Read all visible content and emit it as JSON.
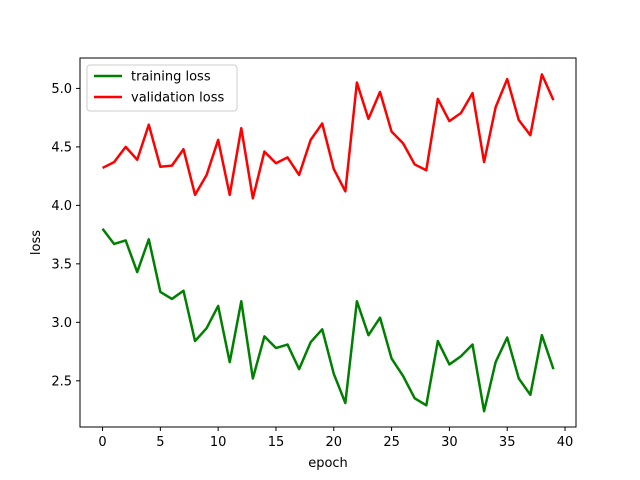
{
  "chart_data": {
    "type": "line",
    "xlabel": "epoch",
    "ylabel": "loss",
    "xlim": [
      -1.95,
      40.95
    ],
    "ylim": [
      2.105,
      5.26
    ],
    "xticks": [
      0,
      5,
      10,
      15,
      20,
      25,
      30,
      35,
      40
    ],
    "yticks": [
      2.5,
      3.0,
      3.5,
      4.0,
      4.5,
      5.0
    ],
    "xtick_labels": [
      "0",
      "5",
      "10",
      "15",
      "20",
      "25",
      "30",
      "35",
      "40"
    ],
    "ytick_labels": [
      "2.5",
      "3.0",
      "3.5",
      "4.0",
      "4.5",
      "5.0"
    ],
    "grid": false,
    "legend_position": "top-left",
    "x": [
      0,
      1,
      2,
      3,
      4,
      5,
      6,
      7,
      8,
      9,
      10,
      11,
      12,
      13,
      14,
      15,
      16,
      17,
      18,
      19,
      20,
      21,
      22,
      23,
      24,
      25,
      26,
      27,
      28,
      29,
      30,
      31,
      32,
      33,
      34,
      35,
      36,
      37,
      38,
      39
    ],
    "series": [
      {
        "name": "training loss",
        "color": "#008000",
        "values": [
          3.8,
          3.67,
          3.7,
          3.43,
          3.71,
          3.26,
          3.2,
          3.27,
          2.84,
          2.95,
          3.14,
          2.66,
          3.18,
          2.52,
          2.88,
          2.78,
          2.81,
          2.6,
          2.83,
          2.94,
          2.56,
          2.31,
          3.18,
          2.89,
          3.04,
          2.69,
          2.54,
          2.35,
          2.29,
          2.84,
          2.64,
          2.71,
          2.81,
          2.24,
          2.66,
          2.87,
          2.52,
          2.38,
          2.89,
          2.6
        ]
      },
      {
        "name": "validation loss",
        "color": "#ff0000",
        "values": [
          4.32,
          4.37,
          4.5,
          4.39,
          4.69,
          4.33,
          4.34,
          4.48,
          4.09,
          4.26,
          4.56,
          4.09,
          4.66,
          4.06,
          4.46,
          4.36,
          4.41,
          4.26,
          4.56,
          4.7,
          4.31,
          4.12,
          5.05,
          4.74,
          4.97,
          4.63,
          4.53,
          4.35,
          4.3,
          4.91,
          4.72,
          4.79,
          4.96,
          4.37,
          4.84,
          5.08,
          4.73,
          4.6,
          5.12,
          4.9
        ]
      }
    ]
  }
}
